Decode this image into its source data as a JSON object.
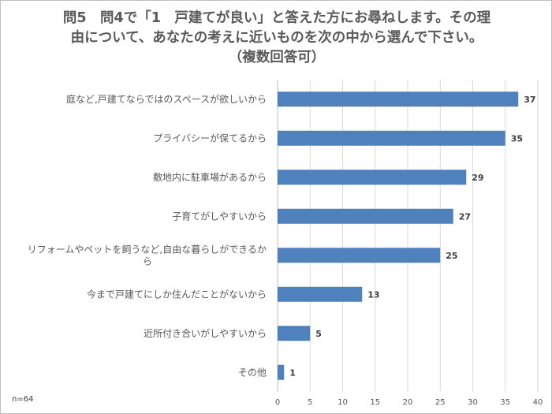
{
  "chart_data": {
    "type": "bar",
    "orientation": "horizontal",
    "title": [
      "問5　問4で「1　戸建てが良い」と答えた方にお尋ねします。その理",
      "由について、あなたの考えに近いものを次の中から選んで下さい。",
      "（複数回答可）"
    ],
    "categories": [
      [
        "庭など,戸建てならではのスペースが欲しいから"
      ],
      [
        "プライバシーが保てるから"
      ],
      [
        "敷地内に駐車場があるから"
      ],
      [
        "子育てがしやすいから"
      ],
      [
        "リフォームやペットを飼うなど,自由な暮らしができるか",
        "ら"
      ],
      [
        "今まで戸建てにしか住んだことがないから"
      ],
      [
        "近所付き合いがしやすいから"
      ],
      [
        "その他"
      ]
    ],
    "values": [
      37,
      35,
      29,
      27,
      25,
      13,
      5,
      1
    ],
    "xlim": [
      0,
      40
    ],
    "xticks": [
      "0",
      "5",
      "10",
      "15",
      "20",
      "25",
      "30",
      "35",
      "40"
    ],
    "grid": true,
    "bar_color": "#4f81bd",
    "grid_color": "#d9d9d9"
  },
  "note": "n=64"
}
